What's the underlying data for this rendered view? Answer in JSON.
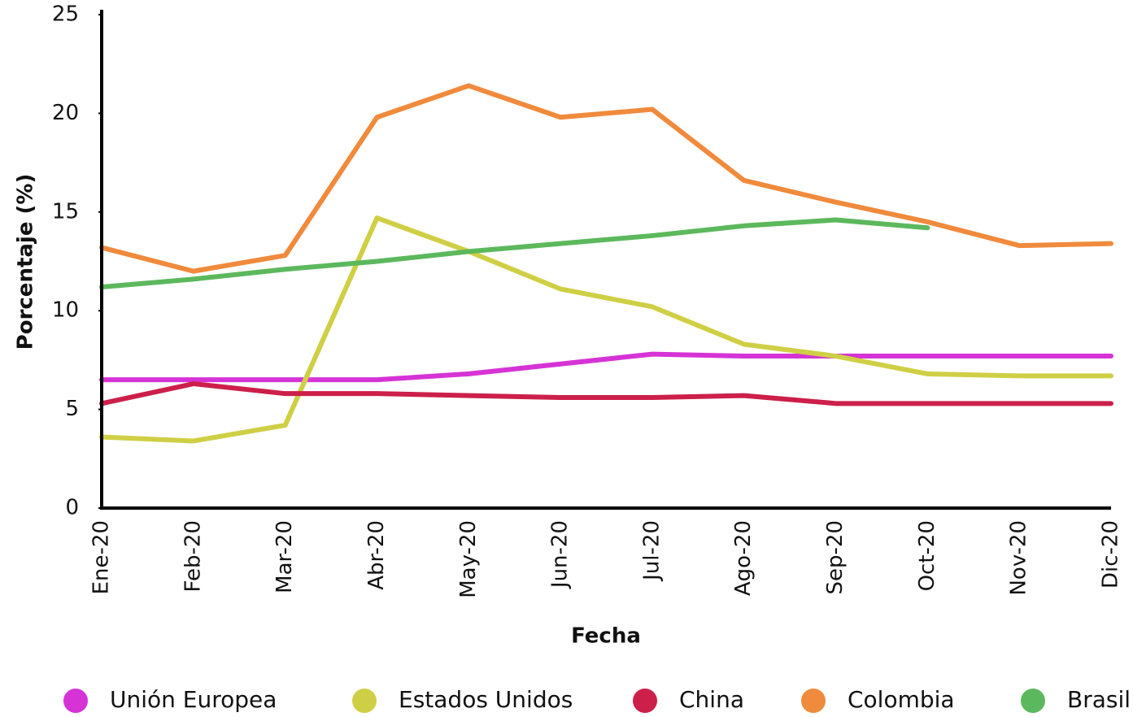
{
  "chart_data": {
    "type": "line",
    "x_label": "Fecha",
    "y_label": "Porcentaje (%)",
    "categories": [
      "Ene-20",
      "Feb-20",
      "Mar-20",
      "Abr-20",
      "May-20",
      "Jun-20",
      "Jul-20",
      "Ago-20",
      "Sep-20",
      "Oct-20",
      "Nov-20",
      "Dic-20"
    ],
    "series": [
      {
        "name": "Unión Europea",
        "color": "#d633d6",
        "values": [
          6.5,
          6.5,
          6.5,
          6.5,
          6.8,
          7.3,
          7.8,
          7.7,
          7.7,
          7.7,
          7.7,
          7.7
        ]
      },
      {
        "name": "Estados Unidos",
        "color": "#cfcf45",
        "values": [
          3.6,
          3.4,
          4.2,
          14.7,
          13.0,
          11.1,
          10.2,
          8.3,
          7.7,
          6.8,
          6.7,
          6.7
        ]
      },
      {
        "name": "China",
        "color": "#cc1f4a",
        "values": [
          5.3,
          6.3,
          5.8,
          5.8,
          5.7,
          5.6,
          5.6,
          5.7,
          5.3,
          5.3,
          5.3,
          5.3
        ]
      },
      {
        "name": "Colombia",
        "color": "#f08a3c",
        "values": [
          13.2,
          12.0,
          12.8,
          19.8,
          21.4,
          19.8,
          20.2,
          16.6,
          15.5,
          14.5,
          13.3,
          13.4
        ]
      },
      {
        "name": "Brasil",
        "color": "#5cb85c",
        "values": [
          11.2,
          11.6,
          12.1,
          12.5,
          13.0,
          13.4,
          13.8,
          14.3,
          14.6,
          14.2,
          null,
          null
        ]
      }
    ],
    "ylim": [
      0,
      25
    ],
    "yticks": [
      0,
      5,
      10,
      15,
      20,
      25
    ],
    "grid": false,
    "legend": "bottom"
  }
}
